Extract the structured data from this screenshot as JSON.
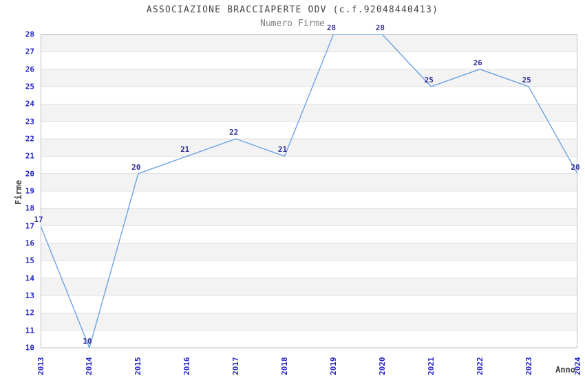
{
  "chart_data": {
    "type": "line",
    "title": "ASSOCIAZIONE BRACCIAPERTE ODV (c.f.92048440413)",
    "subtitle": "Numero Firme",
    "xlabel": "Anno",
    "ylabel": "Firme",
    "categories": [
      "2013",
      "2014",
      "2015",
      "2016",
      "2017",
      "2018",
      "2019",
      "2020",
      "2021",
      "2022",
      "2023",
      "2024"
    ],
    "series": [
      {
        "name": "Numero Firme",
        "values": [
          17,
          10,
          20,
          21,
          22,
          21,
          28,
          28,
          25,
          26,
          25,
          20
        ]
      }
    ],
    "ylim": [
      10,
      28
    ],
    "ytick_step": 1,
    "grid": true,
    "background_bands": "alternating 1-unit horizontal stripes",
    "legend_position": "none",
    "data_labels_visible": true,
    "colors": {
      "line": "#6ba3de",
      "tick_label": "#2222cc",
      "data_label": "#333399",
      "band": "#f3f3f3",
      "gridline": "#e2e2e2",
      "plot_border": "#bdbdbd",
      "title": "#444444",
      "subtitle": "#808080",
      "axis_title": "#404040",
      "background": "#ffffff"
    }
  }
}
